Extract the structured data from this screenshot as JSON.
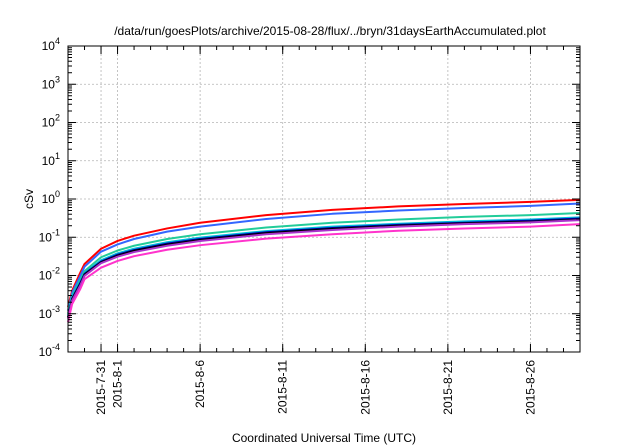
{
  "chart_data": {
    "type": "line",
    "title": "/data/run/goesPlots/archive/2015-08-28/flux/../bryn/31daysEarthAccumulated.plot",
    "xlabel": "Coordinated Universal Time (UTC)",
    "ylabel": "cSv",
    "y_scale": "log",
    "ylim": [
      0.0001,
      10000
    ],
    "xlim": [
      "2015-07-29",
      "2015-08-29"
    ],
    "grid": true,
    "y_ticks": [
      {
        "mantissa": "10",
        "exp": "-4",
        "value": 0.0001
      },
      {
        "mantissa": "10",
        "exp": "-3",
        "value": 0.001
      },
      {
        "mantissa": "10",
        "exp": "-2",
        "value": 0.01
      },
      {
        "mantissa": "10",
        "exp": "-1",
        "value": 0.1
      },
      {
        "mantissa": "10",
        "exp": "0",
        "value": 1
      },
      {
        "mantissa": "10",
        "exp": "1",
        "value": 10
      },
      {
        "mantissa": "10",
        "exp": "2",
        "value": 100
      },
      {
        "mantissa": "10",
        "exp": "3",
        "value": 1000
      },
      {
        "mantissa": "10",
        "exp": "4",
        "value": 10000
      }
    ],
    "x_ticks": [
      "2015-7-31",
      "2015-8-1",
      "2015-8-6",
      "2015-8-11",
      "2015-8-16",
      "2015-8-21",
      "2015-8-26"
    ],
    "x_grid_dates": [
      "2015-07-31",
      "2015-08-01",
      "2015-08-06",
      "2015-08-11",
      "2015-08-16",
      "2015-08-21",
      "2015-08-26"
    ],
    "series": [
      {
        "color": "#ff0000",
        "x": [
          "2015-07-29",
          "2015-07-29T06:00",
          "2015-07-29T18:00",
          "2015-07-30",
          "2015-07-31",
          "2015-08-01",
          "2015-08-02",
          "2015-08-04",
          "2015-08-06",
          "2015-08-10",
          "2015-08-14",
          "2015-08-18",
          "2015-08-22",
          "2015-08-26",
          "2015-08-29"
        ],
        "values": [
          0.0015,
          0.004,
          0.012,
          0.02,
          0.05,
          0.08,
          0.11,
          0.17,
          0.24,
          0.38,
          0.52,
          0.64,
          0.74,
          0.84,
          0.95
        ]
      },
      {
        "color": "#3366ff",
        "x": [
          "2015-07-29",
          "2015-07-29T06:00",
          "2015-07-29T18:00",
          "2015-07-30",
          "2015-07-31",
          "2015-08-01",
          "2015-08-02",
          "2015-08-04",
          "2015-08-06",
          "2015-08-10",
          "2015-08-14",
          "2015-08-18",
          "2015-08-22",
          "2015-08-26",
          "2015-08-29"
        ],
        "values": [
          0.0012,
          0.0035,
          0.01,
          0.017,
          0.042,
          0.065,
          0.09,
          0.14,
          0.19,
          0.3,
          0.41,
          0.5,
          0.58,
          0.66,
          0.76
        ]
      },
      {
        "color": "#22cc99",
        "x": [
          "2015-07-29",
          "2015-07-29T06:00",
          "2015-07-29T18:00",
          "2015-07-30",
          "2015-07-31",
          "2015-08-01",
          "2015-08-02",
          "2015-08-04",
          "2015-08-06",
          "2015-08-10",
          "2015-08-14",
          "2015-08-18",
          "2015-08-22",
          "2015-08-26",
          "2015-08-29"
        ],
        "values": [
          0.001,
          0.003,
          0.008,
          0.013,
          0.03,
          0.045,
          0.06,
          0.09,
          0.12,
          0.18,
          0.24,
          0.29,
          0.34,
          0.38,
          0.43
        ]
      },
      {
        "color": "#00bbdd",
        "x": [
          "2015-07-29",
          "2015-07-29T06:00",
          "2015-07-29T18:00",
          "2015-07-30",
          "2015-07-31",
          "2015-08-01",
          "2015-08-02",
          "2015-08-04",
          "2015-08-06",
          "2015-08-10",
          "2015-08-14",
          "2015-08-18",
          "2015-08-22",
          "2015-08-26",
          "2015-08-29"
        ],
        "values": [
          0.0009,
          0.0027,
          0.007,
          0.0115,
          0.025,
          0.038,
          0.05,
          0.074,
          0.098,
          0.145,
          0.19,
          0.225,
          0.26,
          0.29,
          0.33
        ]
      },
      {
        "color": "#0000aa",
        "x": [
          "2015-07-29",
          "2015-07-29T06:00",
          "2015-07-29T18:00",
          "2015-07-30",
          "2015-07-31",
          "2015-08-01",
          "2015-08-02",
          "2015-08-04",
          "2015-08-06",
          "2015-08-10",
          "2015-08-14",
          "2015-08-18",
          "2015-08-22",
          "2015-08-26",
          "2015-08-29"
        ],
        "values": [
          0.0008,
          0.0025,
          0.0065,
          0.011,
          0.023,
          0.035,
          0.046,
          0.068,
          0.09,
          0.135,
          0.175,
          0.21,
          0.24,
          0.27,
          0.31
        ]
      },
      {
        "color": "#000000",
        "x": [
          "2015-07-29",
          "2015-07-29T06:00",
          "2015-07-29T18:00",
          "2015-07-30",
          "2015-07-31",
          "2015-08-01",
          "2015-08-02",
          "2015-08-04",
          "2015-08-06",
          "2015-08-10",
          "2015-08-14",
          "2015-08-18",
          "2015-08-22",
          "2015-08-26",
          "2015-08-29"
        ],
        "values": [
          0.0008,
          0.0024,
          0.006,
          0.0105,
          0.022,
          0.033,
          0.044,
          0.064,
          0.085,
          0.128,
          0.165,
          0.2,
          0.23,
          0.255,
          0.29
        ]
      },
      {
        "color": "#aa33cc",
        "x": [
          "2015-07-29",
          "2015-07-29T06:00",
          "2015-07-29T18:00",
          "2015-07-30",
          "2015-07-31",
          "2015-08-01",
          "2015-08-02",
          "2015-08-04",
          "2015-08-06",
          "2015-08-10",
          "2015-08-14",
          "2015-08-18",
          "2015-08-22",
          "2015-08-26",
          "2015-08-29"
        ],
        "values": [
          0.00075,
          0.0022,
          0.0056,
          0.0098,
          0.021,
          0.031,
          0.041,
          0.06,
          0.08,
          0.12,
          0.155,
          0.19,
          0.22,
          0.245,
          0.28
        ]
      },
      {
        "color": "#ff33cc",
        "x": [
          "2015-07-29",
          "2015-07-29T06:00",
          "2015-07-29T18:00",
          "2015-07-30",
          "2015-07-31",
          "2015-08-01",
          "2015-08-02",
          "2015-08-04",
          "2015-08-06",
          "2015-08-10",
          "2015-08-14",
          "2015-08-18",
          "2015-08-22",
          "2015-08-26",
          "2015-08-29"
        ],
        "values": [
          0.0006,
          0.0018,
          0.0045,
          0.008,
          0.016,
          0.024,
          0.032,
          0.047,
          0.062,
          0.092,
          0.12,
          0.148,
          0.17,
          0.19,
          0.22
        ]
      }
    ]
  }
}
